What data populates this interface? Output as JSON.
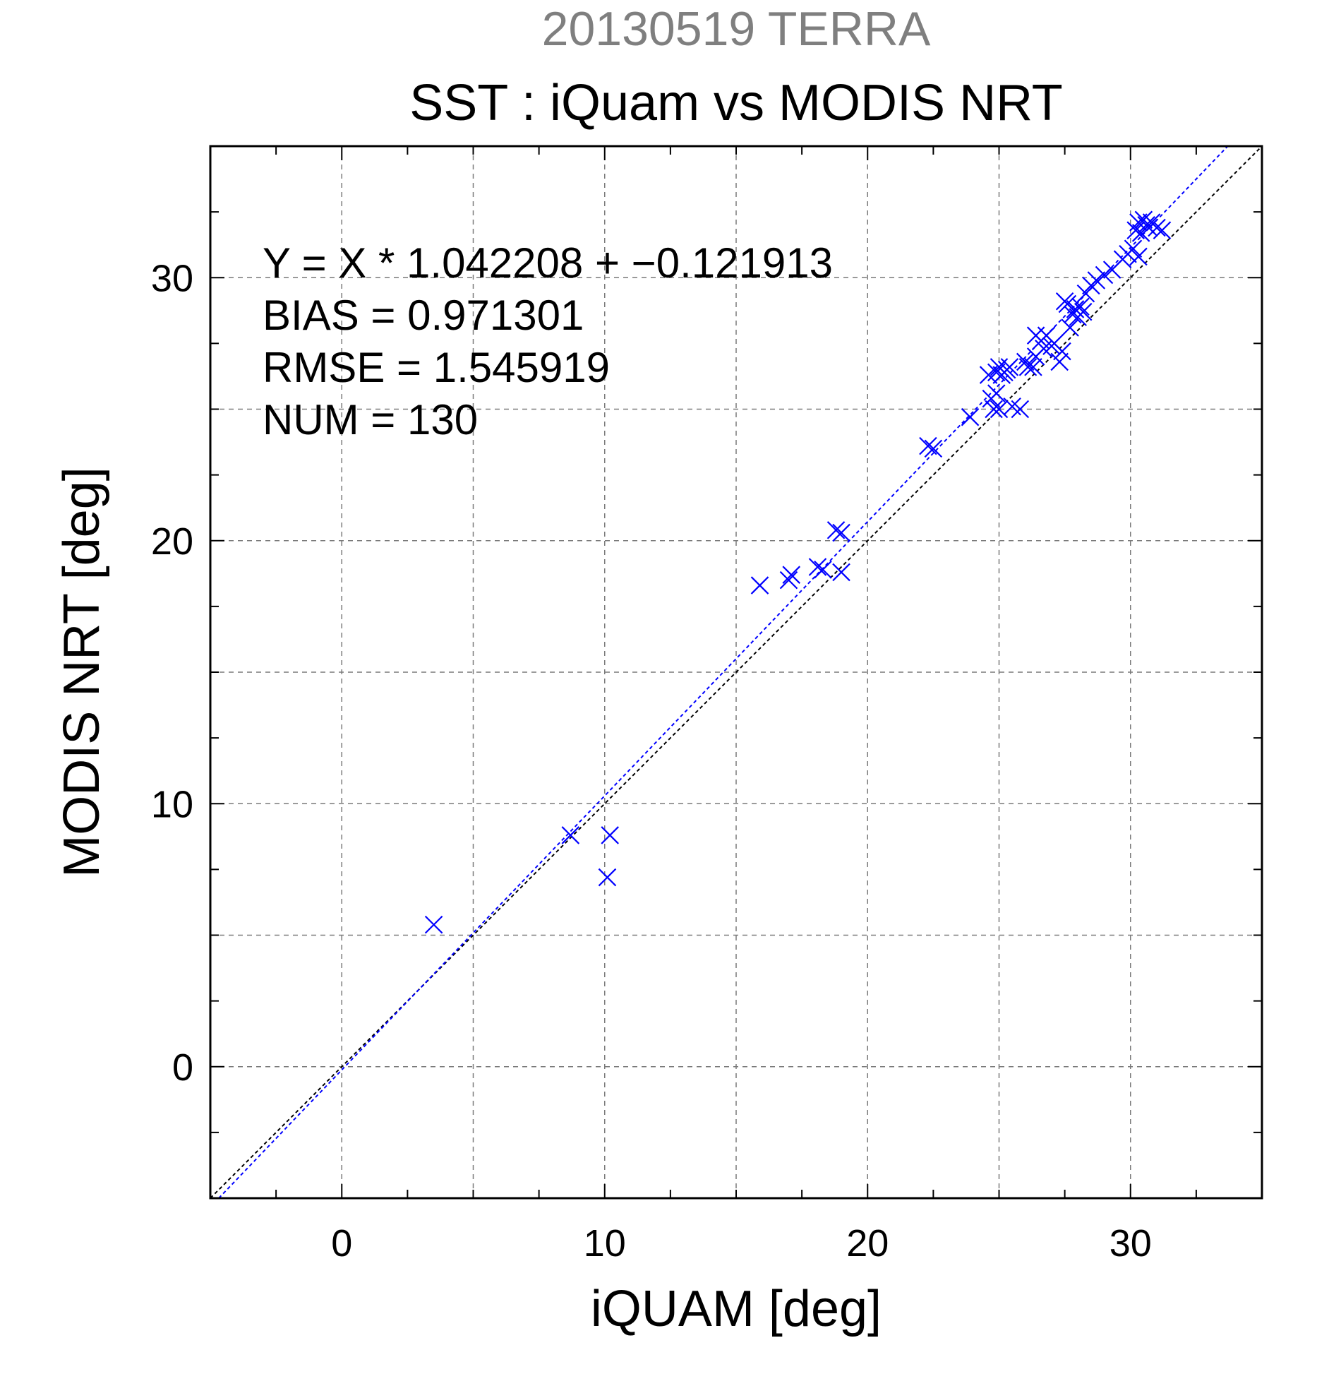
{
  "chart_data": {
    "type": "scatter",
    "title": "20130519 TERRA",
    "subtitle": "SST : iQuam vs MODIS NRT",
    "xlabel": "iQUAM [deg]",
    "ylabel": "MODIS NRT [deg]",
    "xlim": [
      -5,
      35
    ],
    "ylim": [
      -5,
      35
    ],
    "xticks": [
      0,
      10,
      20,
      30
    ],
    "yticks": [
      0,
      10,
      20,
      30
    ],
    "grid": true,
    "annotations": [
      "Y = X * 1.042208 + −0.121913",
      "BIAS = 0.971301",
      "RMSE = 1.545919",
      "NUM = 130"
    ],
    "regression": {
      "slope": 1.042208,
      "intercept": -0.121913,
      "color": "#0000ff"
    },
    "identity_line_color": "#000000",
    "marker_color": "#0000ff",
    "series": [
      {
        "points": [
          [
            3.5,
            5.4
          ],
          [
            8.7,
            8.8
          ],
          [
            10.1,
            7.2
          ],
          [
            10.2,
            8.8
          ],
          [
            15.9,
            18.3
          ],
          [
            17.0,
            18.5
          ],
          [
            17.1,
            18.7
          ],
          [
            18.1,
            19.0
          ],
          [
            18.3,
            18.9
          ],
          [
            18.8,
            20.4
          ],
          [
            19.0,
            20.3
          ],
          [
            19.0,
            18.8
          ],
          [
            22.3,
            23.6
          ],
          [
            22.5,
            23.5
          ],
          [
            23.9,
            24.7
          ],
          [
            24.6,
            26.3
          ],
          [
            24.7,
            25.4
          ],
          [
            24.8,
            25.0
          ],
          [
            24.9,
            25.6
          ],
          [
            24.9,
            26.4
          ],
          [
            25.0,
            25.0
          ],
          [
            25.0,
            26.6
          ],
          [
            25.1,
            26.3
          ],
          [
            25.2,
            26.4
          ],
          [
            25.3,
            26.5
          ],
          [
            25.4,
            26.6
          ],
          [
            25.5,
            25.1
          ],
          [
            25.8,
            25.0
          ],
          [
            26.0,
            26.8
          ],
          [
            26.1,
            26.6
          ],
          [
            26.3,
            26.6
          ],
          [
            26.4,
            27.0
          ],
          [
            26.4,
            27.8
          ],
          [
            26.6,
            27.6
          ],
          [
            26.7,
            27.3
          ],
          [
            26.8,
            27.8
          ],
          [
            27.0,
            27.4
          ],
          [
            27.1,
            27.5
          ],
          [
            27.3,
            26.8
          ],
          [
            27.4,
            27.2
          ],
          [
            27.5,
            29.1
          ],
          [
            27.6,
            29.0
          ],
          [
            27.7,
            28.1
          ],
          [
            27.8,
            28.6
          ],
          [
            27.9,
            28.8
          ],
          [
            28.0,
            28.5
          ],
          [
            28.1,
            28.9
          ],
          [
            28.2,
            28.7
          ],
          [
            28.3,
            29.4
          ],
          [
            28.5,
            29.7
          ],
          [
            28.7,
            29.9
          ],
          [
            29.0,
            30.1
          ],
          [
            29.3,
            30.3
          ],
          [
            29.7,
            30.7
          ],
          [
            29.9,
            30.9
          ],
          [
            30.1,
            31.1
          ],
          [
            30.2,
            31.8
          ],
          [
            30.3,
            32.1
          ],
          [
            30.3,
            30.8
          ],
          [
            30.4,
            31.7
          ],
          [
            30.5,
            32.2
          ],
          [
            30.6,
            32.0
          ],
          [
            30.7,
            31.9
          ],
          [
            30.8,
            32.1
          ],
          [
            31.0,
            31.9
          ],
          [
            31.2,
            31.8
          ]
        ]
      }
    ]
  }
}
